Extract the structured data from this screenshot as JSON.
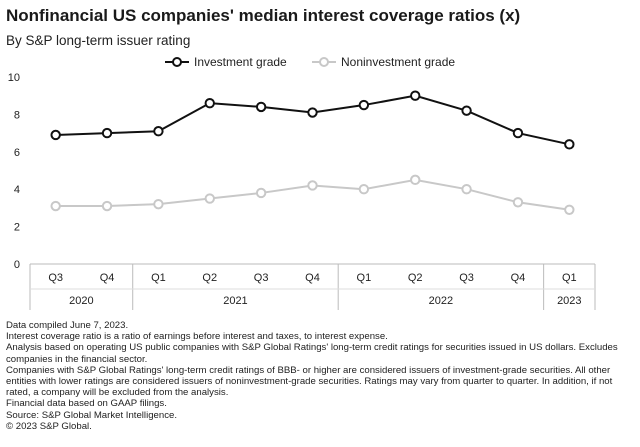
{
  "header": {
    "title": "Nonfinancial US companies' median interest coverage ratios (x)",
    "subtitle": "By S&P long-term issuer rating"
  },
  "chart_data": {
    "type": "line",
    "title": "Nonfinancial US companies' median interest coverage ratios (x)",
    "subtitle": "By S&P long-term issuer rating",
    "categories": [
      "Q3",
      "Q4",
      "Q1",
      "Q2",
      "Q3",
      "Q4",
      "Q1",
      "Q2",
      "Q3",
      "Q4",
      "Q1"
    ],
    "year_groups": [
      {
        "label": "2020",
        "start": 0,
        "end": 1
      },
      {
        "label": "2021",
        "start": 2,
        "end": 5
      },
      {
        "label": "2022",
        "start": 6,
        "end": 9
      },
      {
        "label": "2023",
        "start": 10,
        "end": 10
      }
    ],
    "ylim": [
      0,
      10
    ],
    "yticks": [
      0,
      2,
      4,
      6,
      8,
      10
    ],
    "series": [
      {
        "name": "Investment grade",
        "color": "#111111",
        "values": [
          6.9,
          7.0,
          7.1,
          8.6,
          8.4,
          8.1,
          8.5,
          9.0,
          8.2,
          7.0,
          6.4
        ]
      },
      {
        "name": "Noninvestment grade",
        "color": "#c8c8c8",
        "values": [
          3.1,
          3.1,
          3.2,
          3.5,
          3.8,
          4.2,
          4.0,
          4.5,
          4.0,
          3.3,
          2.9
        ]
      }
    ],
    "legend": "top-center",
    "grid": false
  },
  "notes": [
    "Data compiled June 7, 2023.",
    "Interest coverage ratio is a ratio of earnings before interest and taxes, to interest expense.",
    "Analysis based on operating US public companies with S&P Global Ratings' long-term credit ratings for securities issued in US dollars. Excludes companies in the financial sector.",
    "Companies with S&P Global Ratings' long-term credit ratings of BBB- or higher are considered issuers of investment-grade securities. All other entities with lower ratings are considered issuers of noninvestment-grade securities. Ratings may vary from quarter to quarter. In addition, if not rated, a company will be excluded from the analysis.",
    "Financial data based on GAAP filings.",
    "Source: S&P Global Market Intelligence.",
    "© 2023 S&P Global."
  ]
}
